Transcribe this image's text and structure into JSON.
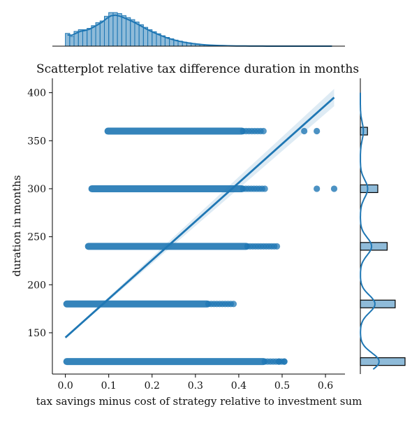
{
  "chart_data": {
    "type": "scatter",
    "title": "Scatterplot relative tax difference duration in months",
    "xlabel": "tax savings minus cost of strategy relative to investment sum",
    "ylabel": "duration in months",
    "xlim": [
      -0.03,
      0.645
    ],
    "ylim": [
      107,
      415
    ],
    "xticks": [
      "0.0",
      "0.1",
      "0.2",
      "0.3",
      "0.4",
      "0.5",
      "0.6"
    ],
    "xtick_values": [
      0.0,
      0.1,
      0.2,
      0.3,
      0.4,
      0.5,
      0.6
    ],
    "yticks": [
      "150",
      "200",
      "250",
      "300",
      "350",
      "400"
    ],
    "ytick_values": [
      150,
      200,
      250,
      300,
      350,
      400
    ],
    "color": "#1f77b4",
    "bands": [
      {
        "y": 120,
        "x_start": 0.0,
        "x_dense_end": 0.46,
        "x_end": 0.505
      },
      {
        "y": 180,
        "x_start": 0.0,
        "x_dense_end": 0.33,
        "x_end": 0.388
      },
      {
        "y": 240,
        "x_start": 0.05,
        "x_dense_end": 0.42,
        "x_end": 0.488
      },
      {
        "y": 300,
        "x_start": 0.058,
        "x_dense_end": 0.41,
        "x_end": 0.46
      },
      {
        "y": 360,
        "x_start": 0.095,
        "x_dense_end": 0.41,
        "x_end": 0.457
      }
    ],
    "outliers": [
      {
        "x": 0.551,
        "y": 360
      },
      {
        "x": 0.58,
        "y": 360
      },
      {
        "x": 0.58,
        "y": 300
      },
      {
        "x": 0.62,
        "y": 300
      },
      {
        "x": 0.493,
        "y": 120
      },
      {
        "x": 0.505,
        "y": 120
      }
    ],
    "regression": {
      "x_start": 0.0,
      "y_start": 145,
      "x_end": 0.62,
      "y_end": 395,
      "ci_halfwidth_end": 9
    },
    "marginal_x_hist": {
      "bin_start": 0.0,
      "bin_width": 0.01,
      "heights": [
        0.38,
        0.29,
        0.44,
        0.49,
        0.49,
        0.53,
        0.61,
        0.7,
        0.75,
        0.89,
        1.0,
        1.0,
        0.97,
        0.91,
        0.85,
        0.79,
        0.72,
        0.64,
        0.56,
        0.49,
        0.43,
        0.37,
        0.31,
        0.26,
        0.22,
        0.18,
        0.15,
        0.12,
        0.1,
        0.08,
        0.065,
        0.05,
        0.04,
        0.032,
        0.025,
        0.02,
        0.015,
        0.012,
        0.009,
        0.007,
        0.005,
        0.004,
        0.003,
        0.002,
        0.002,
        0.001,
        0.001,
        0.001,
        0.001,
        0.0,
        0.0,
        0.0,
        0.0,
        0.0,
        0.0,
        0.0,
        0.0,
        0.0,
        0.0,
        0.0,
        0.0,
        0.0
      ]
    },
    "marginal_y_hist": {
      "bins": [
        {
          "y0": 116,
          "y1": 124,
          "count": 1.0
        },
        {
          "y0": 176,
          "y1": 184,
          "count": 0.78
        },
        {
          "y0": 236,
          "y1": 244,
          "count": 0.6
        },
        {
          "y0": 296,
          "y1": 304,
          "count": 0.39
        },
        {
          "y0": 356,
          "y1": 364,
          "count": 0.16
        }
      ]
    }
  }
}
